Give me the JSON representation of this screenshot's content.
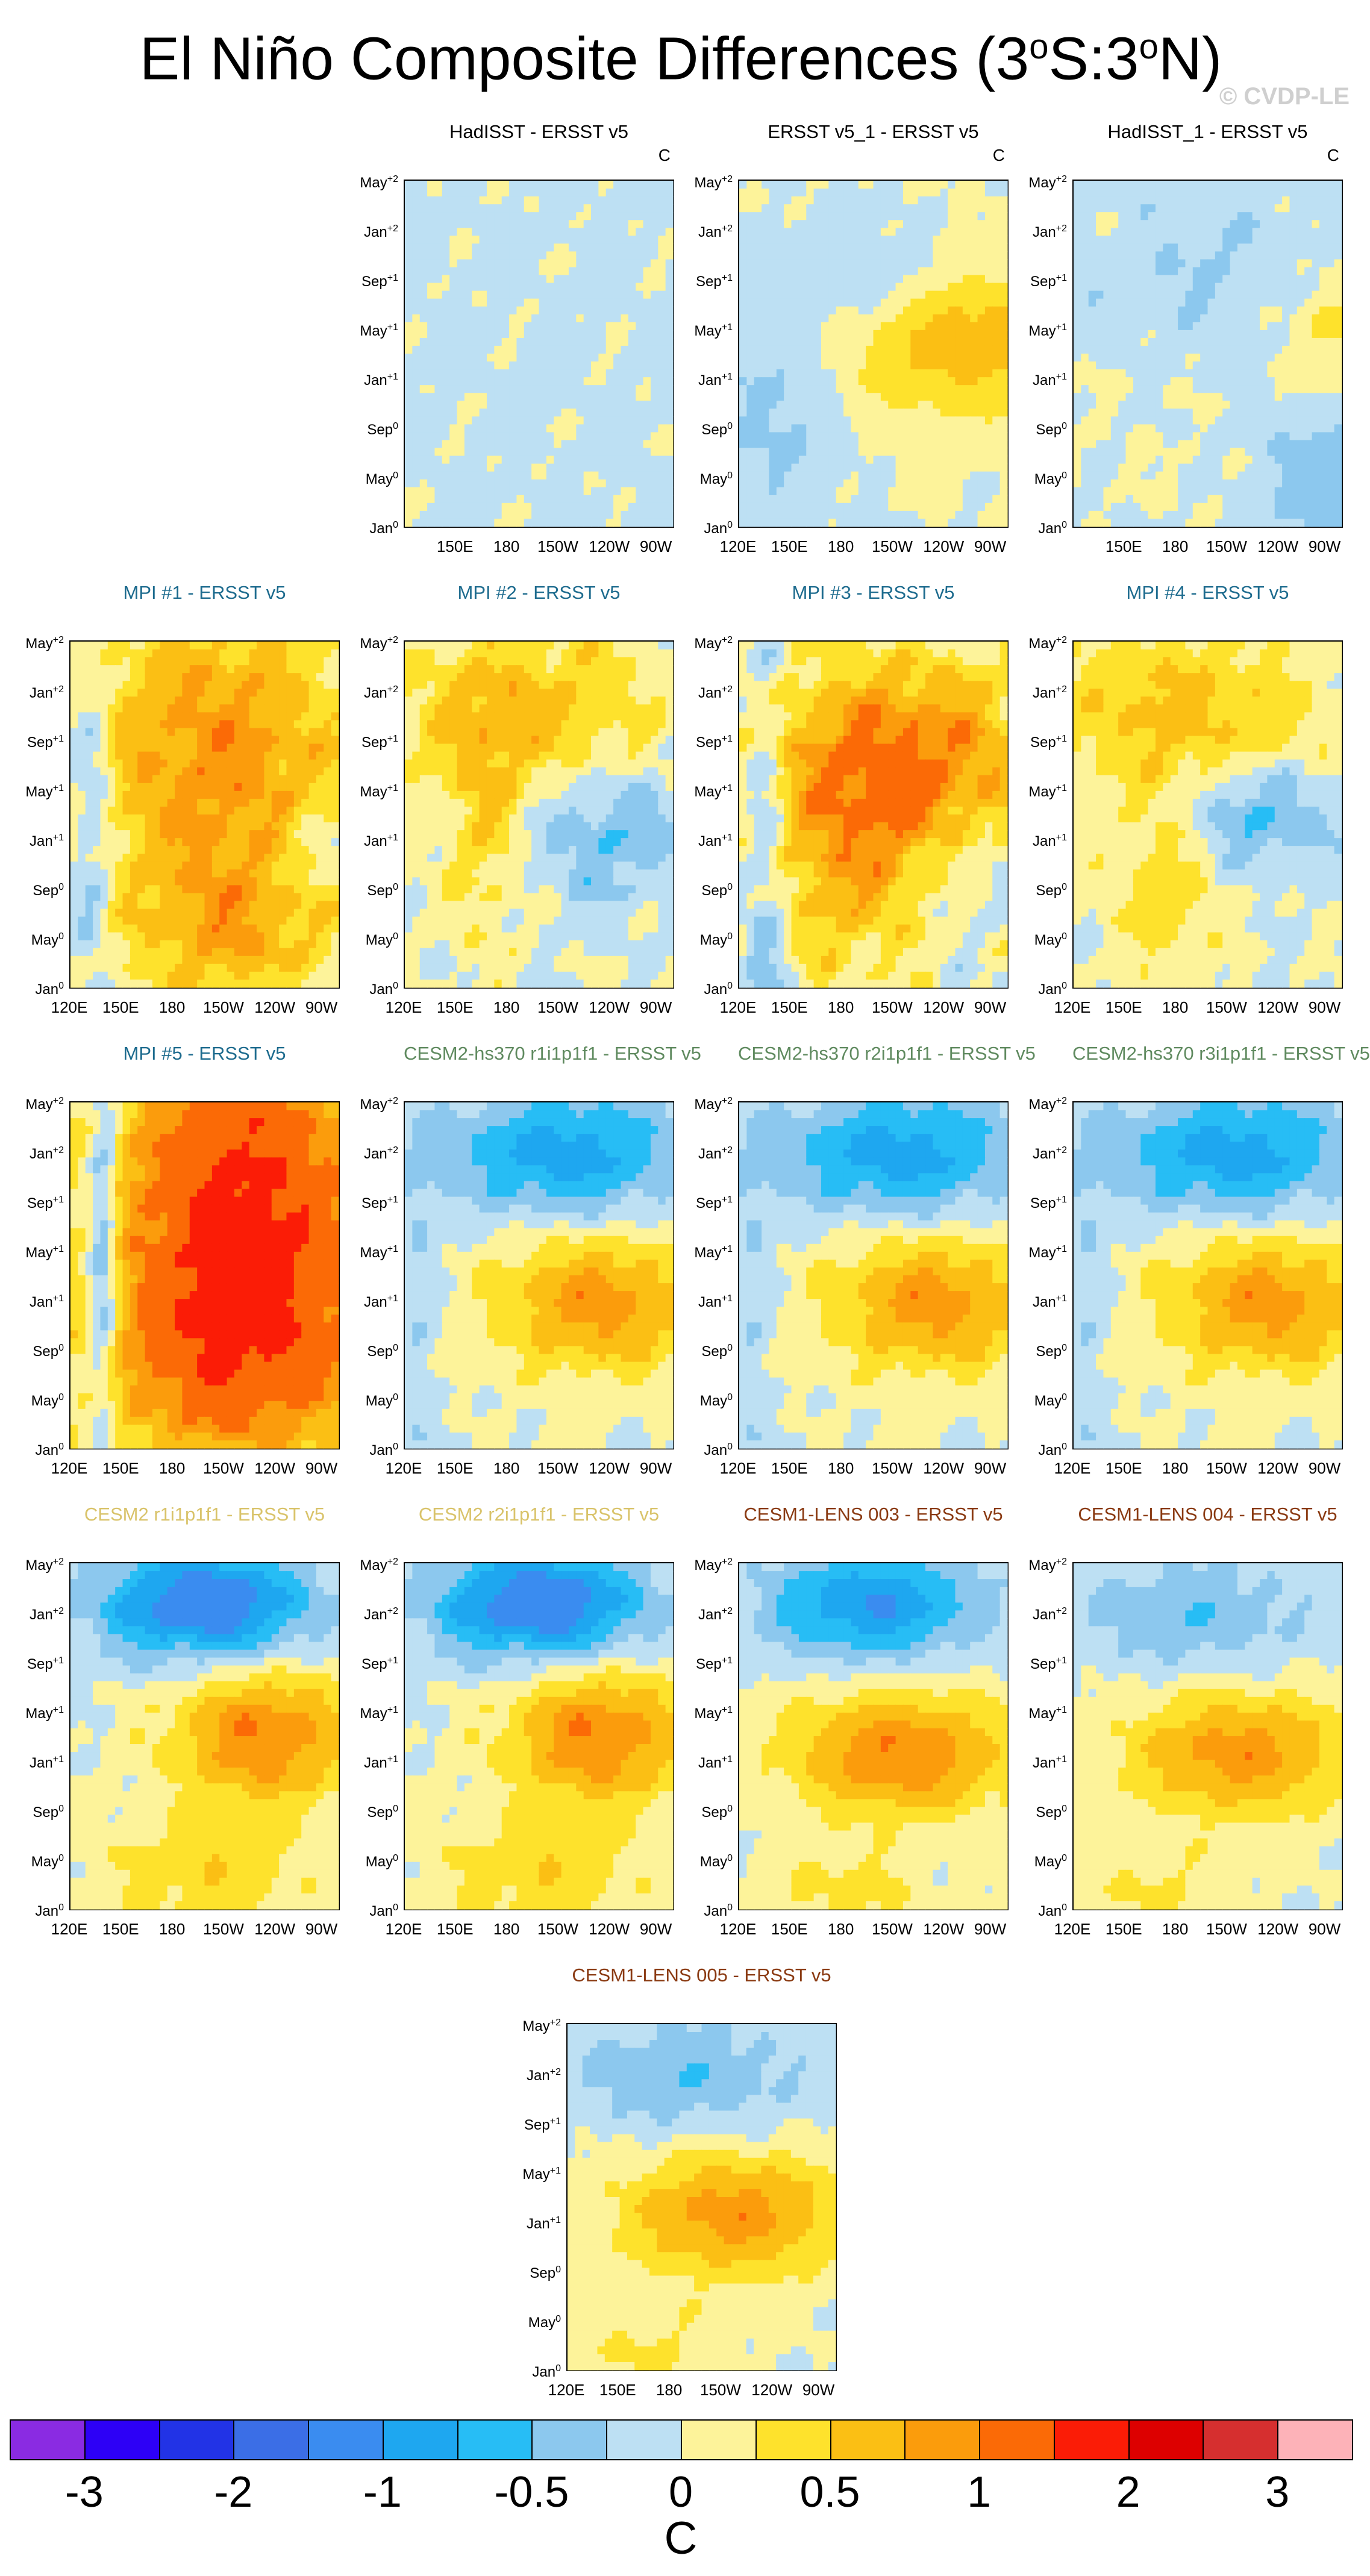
{
  "page": {
    "title": "El Niño Composite Differences (3",
    "title_sup1": "o",
    "title_mid": "S:3",
    "title_sup2": "o",
    "title_end": "N)",
    "watermark": "© CVDP-LE"
  },
  "chart_data": {
    "type": "heatmap",
    "description_axes": {
      "x_ticks": [
        "120E",
        "150E",
        "180",
        "150W",
        "120W",
        "90W"
      ],
      "y_ticks": [
        {
          "month": "Jan",
          "sup": "0"
        },
        {
          "month": "May",
          "sup": "0"
        },
        {
          "month": "Sep",
          "sup": "0"
        },
        {
          "month": "Jan",
          "sup": "+1"
        },
        {
          "month": "May",
          "sup": "+1"
        },
        {
          "month": "Sep",
          "sup": "+1"
        },
        {
          "month": "Jan",
          "sup": "+2"
        },
        {
          "month": "May",
          "sup": "+2"
        }
      ]
    },
    "unit": "C",
    "colorbar": {
      "labels": [
        "-3",
        "-2",
        "-1",
        "-0.5",
        "0",
        "0.5",
        "1",
        "2",
        "3"
      ],
      "colors": [
        "#8a2be2",
        "#2d00f6",
        "#2233e6",
        "#3b6ee6",
        "#3a8cf0",
        "#1ea7f0",
        "#27bdf5",
        "#8cc8ee",
        "#bde0f3",
        "#fdf39a",
        "#fee22c",
        "#fbbf14",
        "#fb9c0c",
        "#fb6a06",
        "#fb1c06",
        "#dd0000",
        "#d62f2f",
        "#fdb2b8"
      ],
      "unit": "C"
    },
    "panels": [
      {
        "title": "HadISST - ERSST v5",
        "title_color": "#000000",
        "unit": "C",
        "xlabels": "partial",
        "pattern": "obs_weak"
      },
      {
        "title": "ERSST v5_1 - ERSST v5",
        "title_color": "#000000",
        "unit": "C",
        "xlabels": "full",
        "pattern": "obs_warm_east"
      },
      {
        "title": "HadISST_1 - ERSST v5",
        "title_color": "#000000",
        "unit": "C",
        "xlabels": "partial",
        "pattern": "obs_mixed"
      },
      {
        "title": "MPI #1 - ERSST v5",
        "title_color": "#1d6b8e",
        "xlabels": "full",
        "pattern": "mpi_warm"
      },
      {
        "title": "MPI #2 - ERSST v5",
        "title_color": "#1d6b8e",
        "xlabels": "full",
        "pattern": "mpi_mild"
      },
      {
        "title": "MPI #3 - ERSST v5",
        "title_color": "#1d6b8e",
        "xlabels": "full",
        "pattern": "mpi_hot"
      },
      {
        "title": "MPI #4 - ERSST v5",
        "title_color": "#1d6b8e",
        "xlabels": "full",
        "pattern": "mpi_mild2"
      },
      {
        "title": "MPI #5 - ERSST v5",
        "title_color": "#1d6b8e",
        "xlabels": "full",
        "pattern": "mpi_veryhot"
      },
      {
        "title": "CESM2-hs370 r1i1p1f1 - ERSST v5",
        "title_color": "#5f8a5f",
        "xlabels": "full",
        "pattern": "cesm_dipole"
      },
      {
        "title": "CESM2-hs370 r2i1p1f1 - ERSST v5",
        "title_color": "#5f8a5f",
        "xlabels": "full",
        "pattern": "cesm_dipole"
      },
      {
        "title": "CESM2-hs370 r3i1p1f1 - ERSST v5",
        "title_color": "#5f8a5f",
        "xlabels": "full",
        "pattern": "cesm_dipole"
      },
      {
        "title": "CESM2 r1i1p1f1 - ERSST v5",
        "title_color": "#d9c36a",
        "xlabels": "full",
        "pattern": "cesm2_strong"
      },
      {
        "title": "CESM2 r2i1p1f1 - ERSST v5",
        "title_color": "#d9c36a",
        "xlabels": "full",
        "pattern": "cesm2_strong"
      },
      {
        "title": "CESM1-LENS 003 - ERSST v5",
        "title_color": "#8a3a12",
        "xlabels": "full",
        "pattern": "lens"
      },
      {
        "title": "CESM1-LENS 004 - ERSST v5",
        "title_color": "#8a3a12",
        "xlabels": "full",
        "pattern": "lens_weak"
      },
      {
        "title": "CESM1-LENS 005 - ERSST v5",
        "title_color": "#8a3a12",
        "xlabels": "full",
        "pattern": "lens_weak"
      }
    ]
  }
}
